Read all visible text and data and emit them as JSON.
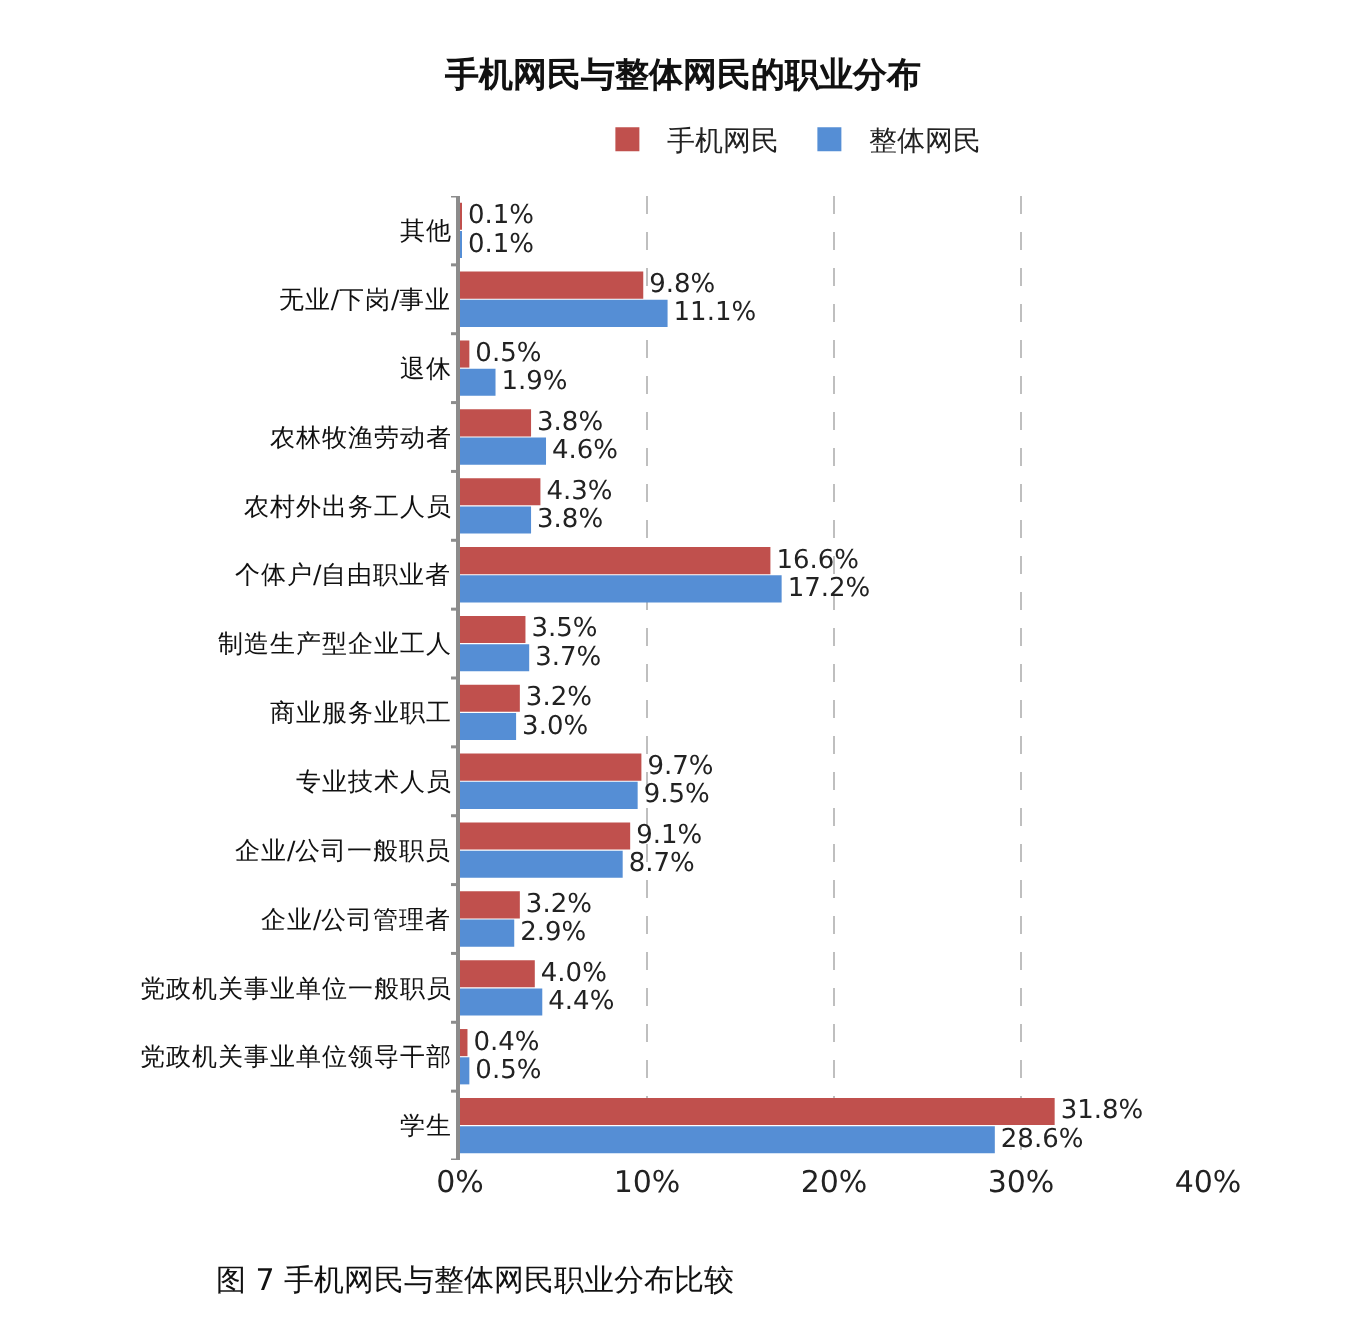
{
  "chart_data": {
    "type": "bar",
    "orientation": "horizontal",
    "title": "手机网民与整体网民的职业分布",
    "categories": [
      "其他",
      "无业/下岗/事业",
      "退休",
      "农林牧渔劳动者",
      "农村外出务工人员",
      "个体户/自由职业者",
      "制造生产型企业工人",
      "商业服务业职工",
      "专业技术人员",
      "企业/公司一般职员",
      "企业/公司管理者",
      "党政机关事业单位一般职员",
      "党政机关事业单位领导干部",
      "学生"
    ],
    "series": [
      {
        "name": "手机网民",
        "color": "#c0504d",
        "values": [
          0.1,
          9.8,
          0.5,
          3.8,
          4.3,
          16.6,
          3.5,
          3.2,
          9.7,
          9.1,
          3.2,
          4.0,
          0.4,
          31.8
        ],
        "value_labels": [
          "0.1%",
          "9.8%",
          "0.5%",
          "3.8%",
          "4.3%",
          "16.6%",
          "3.5%",
          "3.2%",
          "9.7%",
          "9.1%",
          "3.2%",
          "4.0%",
          "0.4%",
          "31.8%"
        ]
      },
      {
        "name": "整体网民",
        "color": "#558ed5",
        "values": [
          0.1,
          11.1,
          1.9,
          4.6,
          3.8,
          17.2,
          3.7,
          3.0,
          9.5,
          8.7,
          2.9,
          4.4,
          0.5,
          28.6
        ],
        "value_labels": [
          "0.1%",
          "11.1%",
          "1.9%",
          "4.6%",
          "3.8%",
          "17.2%",
          "3.7%",
          "3.0%",
          "9.5%",
          "8.7%",
          "2.9%",
          "4.4%",
          "0.5%",
          "28.6%"
        ]
      }
    ],
    "xlim": [
      0,
      40
    ],
    "xticks": [
      {
        "value": 0,
        "label": "0%"
      },
      {
        "value": 10,
        "label": "10%"
      },
      {
        "value": 20,
        "label": "20%"
      },
      {
        "value": 30,
        "label": "30%"
      },
      {
        "value": 40,
        "label": "40%"
      }
    ],
    "grid": "x",
    "legend": "top",
    "annotations": [
      "图 7 手机网民与整体网民职业分布比较"
    ]
  }
}
